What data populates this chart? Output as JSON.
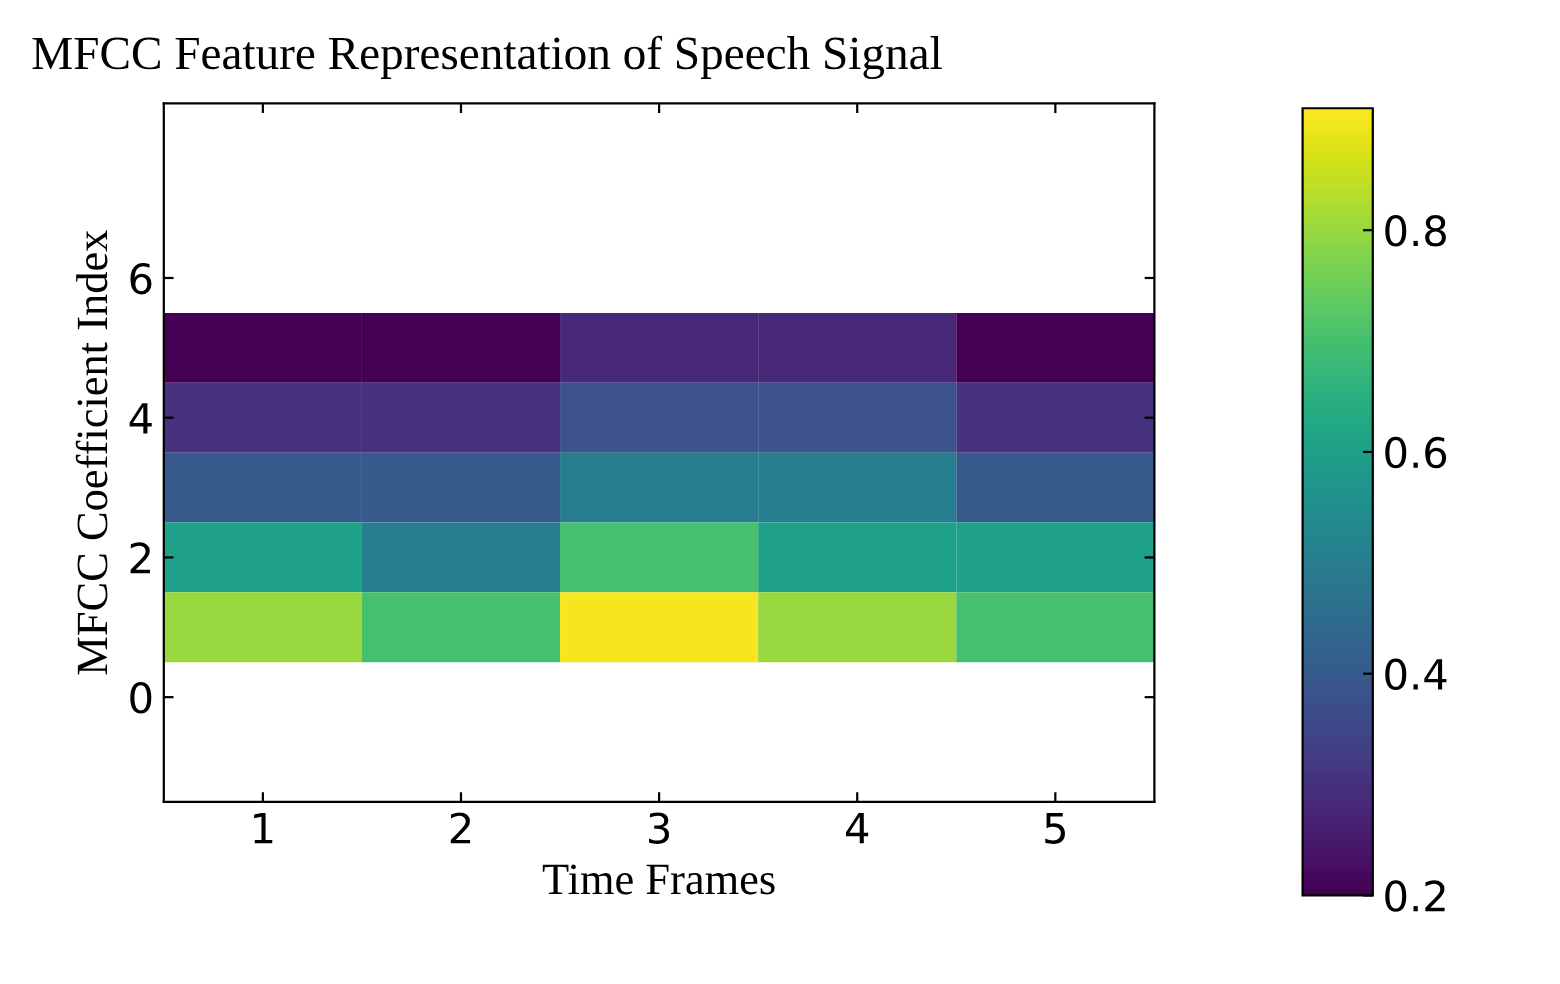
{
  "chart_data": {
    "type": "heatmap",
    "title": "MFCC Feature Representation of Speech Signal",
    "xlabel": "Time Frames",
    "ylabel": "MFCC Coefficient Index",
    "categories": [
      "1",
      "2",
      "3",
      "4",
      "5"
    ],
    "y_categories": [
      "6",
      null,
      "4",
      null,
      "2",
      null,
      "0"
    ],
    "cells": [
      [
        null,
        null,
        null,
        null,
        null
      ],
      [
        0.2,
        0.2,
        0.28,
        0.28,
        0.2
      ],
      [
        0.3,
        0.3,
        0.38,
        0.38,
        0.3
      ],
      [
        0.4,
        0.4,
        0.5,
        0.5,
        0.4
      ],
      [
        0.6,
        0.5,
        0.7,
        0.6,
        0.6
      ],
      [
        0.8,
        0.7,
        0.9,
        0.8,
        0.7
      ],
      [
        null,
        null,
        null,
        null,
        null
      ]
    ],
    "clim": [
      0.2,
      0.91
    ],
    "cticks": [
      0.2,
      0.4,
      0.6,
      0.8
    ],
    "grid": false
  }
}
